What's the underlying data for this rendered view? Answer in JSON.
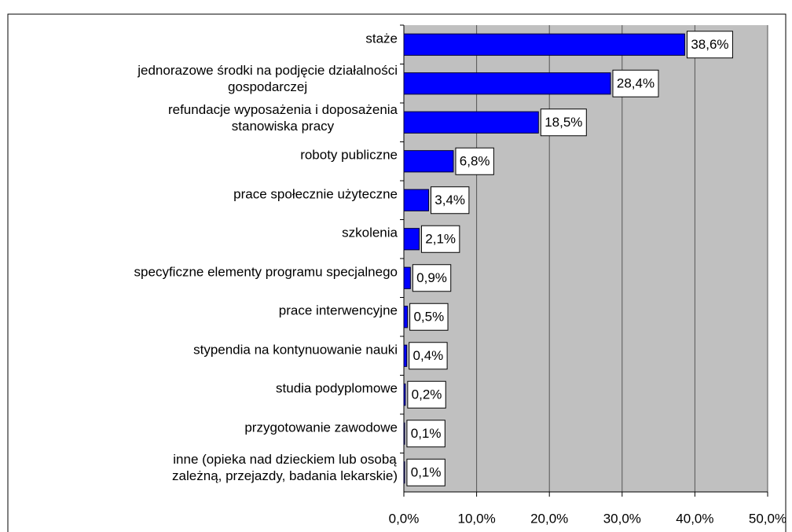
{
  "chart_data": {
    "type": "bar",
    "orientation": "horizontal",
    "categories": [
      "staże",
      "jednorazowe środki na podjęcie działalności\ngospodarczej",
      "refundacje wyposażenia i doposażenia\nstanowiska pracy",
      "roboty publiczne",
      "prace społecznie użyteczne",
      "szkolenia",
      "specyficzne elementy programu specjalnego",
      "prace interwencyjne",
      "stypendia na kontynuowanie nauki",
      "studia podyplomowe",
      "przygotowanie zawodowe",
      "inne (opieka nad dzieckiem lub osobą\nzależną, przejazdy, badania lekarskie)"
    ],
    "values": [
      38.6,
      28.4,
      18.5,
      6.8,
      3.4,
      2.1,
      0.9,
      0.5,
      0.4,
      0.2,
      0.1,
      0.1
    ],
    "value_labels": [
      "38,6%",
      "28,4%",
      "18,5%",
      "6,8%",
      "3,4%",
      "2,1%",
      "0,9%",
      "0,5%",
      "0,4%",
      "0,2%",
      "0,1%",
      "0,1%"
    ],
    "color": "#0000ff",
    "xlim": [
      0,
      50
    ],
    "xticks": [
      {
        "value": 0,
        "label": "0,0%"
      },
      {
        "value": 10,
        "label": "10,0%"
      },
      {
        "value": 20,
        "label": "20,0%"
      },
      {
        "value": 30,
        "label": "30,0%"
      },
      {
        "value": 40,
        "label": "40,0%"
      },
      {
        "value": 50,
        "label": "50,0%"
      }
    ],
    "grid": true
  }
}
